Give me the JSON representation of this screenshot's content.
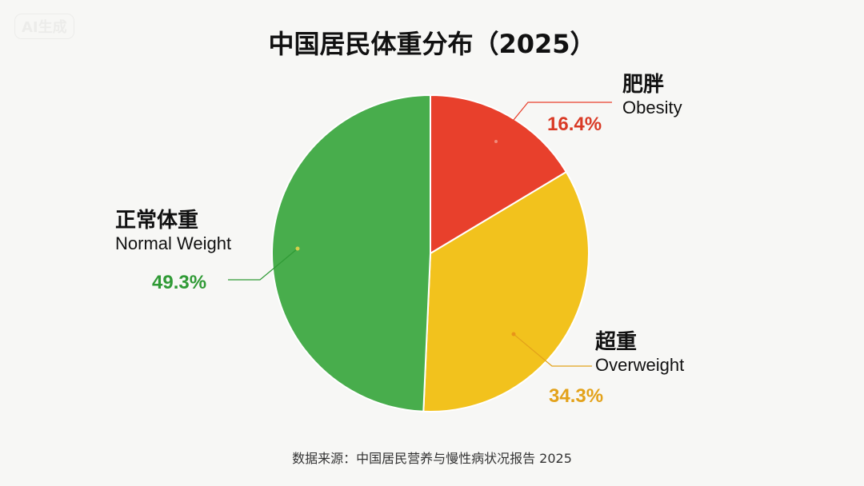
{
  "watermark": "AI生成",
  "chart_data": {
    "type": "pie",
    "title": "中国居民体重分布（2025）",
    "slices": [
      {
        "label_zh": "肥胖",
        "label_en": "Obesity",
        "value": 16.4,
        "pct_label": "16.4%",
        "color": "#e8402c",
        "label_color": "#d93a26"
      },
      {
        "label_zh": "超重",
        "label_en": "Overweight",
        "value": 34.3,
        "pct_label": "34.3%",
        "color": "#f2c21d",
        "label_color": "#e3a21a"
      },
      {
        "label_zh": "正常体重",
        "label_en": "Normal Weight",
        "value": 49.3,
        "pct_label": "49.3%",
        "color": "#48ad4c",
        "label_color": "#2f9a35"
      }
    ],
    "source": "数据来源：中国居民营养与慢性病状况报告 2025"
  }
}
